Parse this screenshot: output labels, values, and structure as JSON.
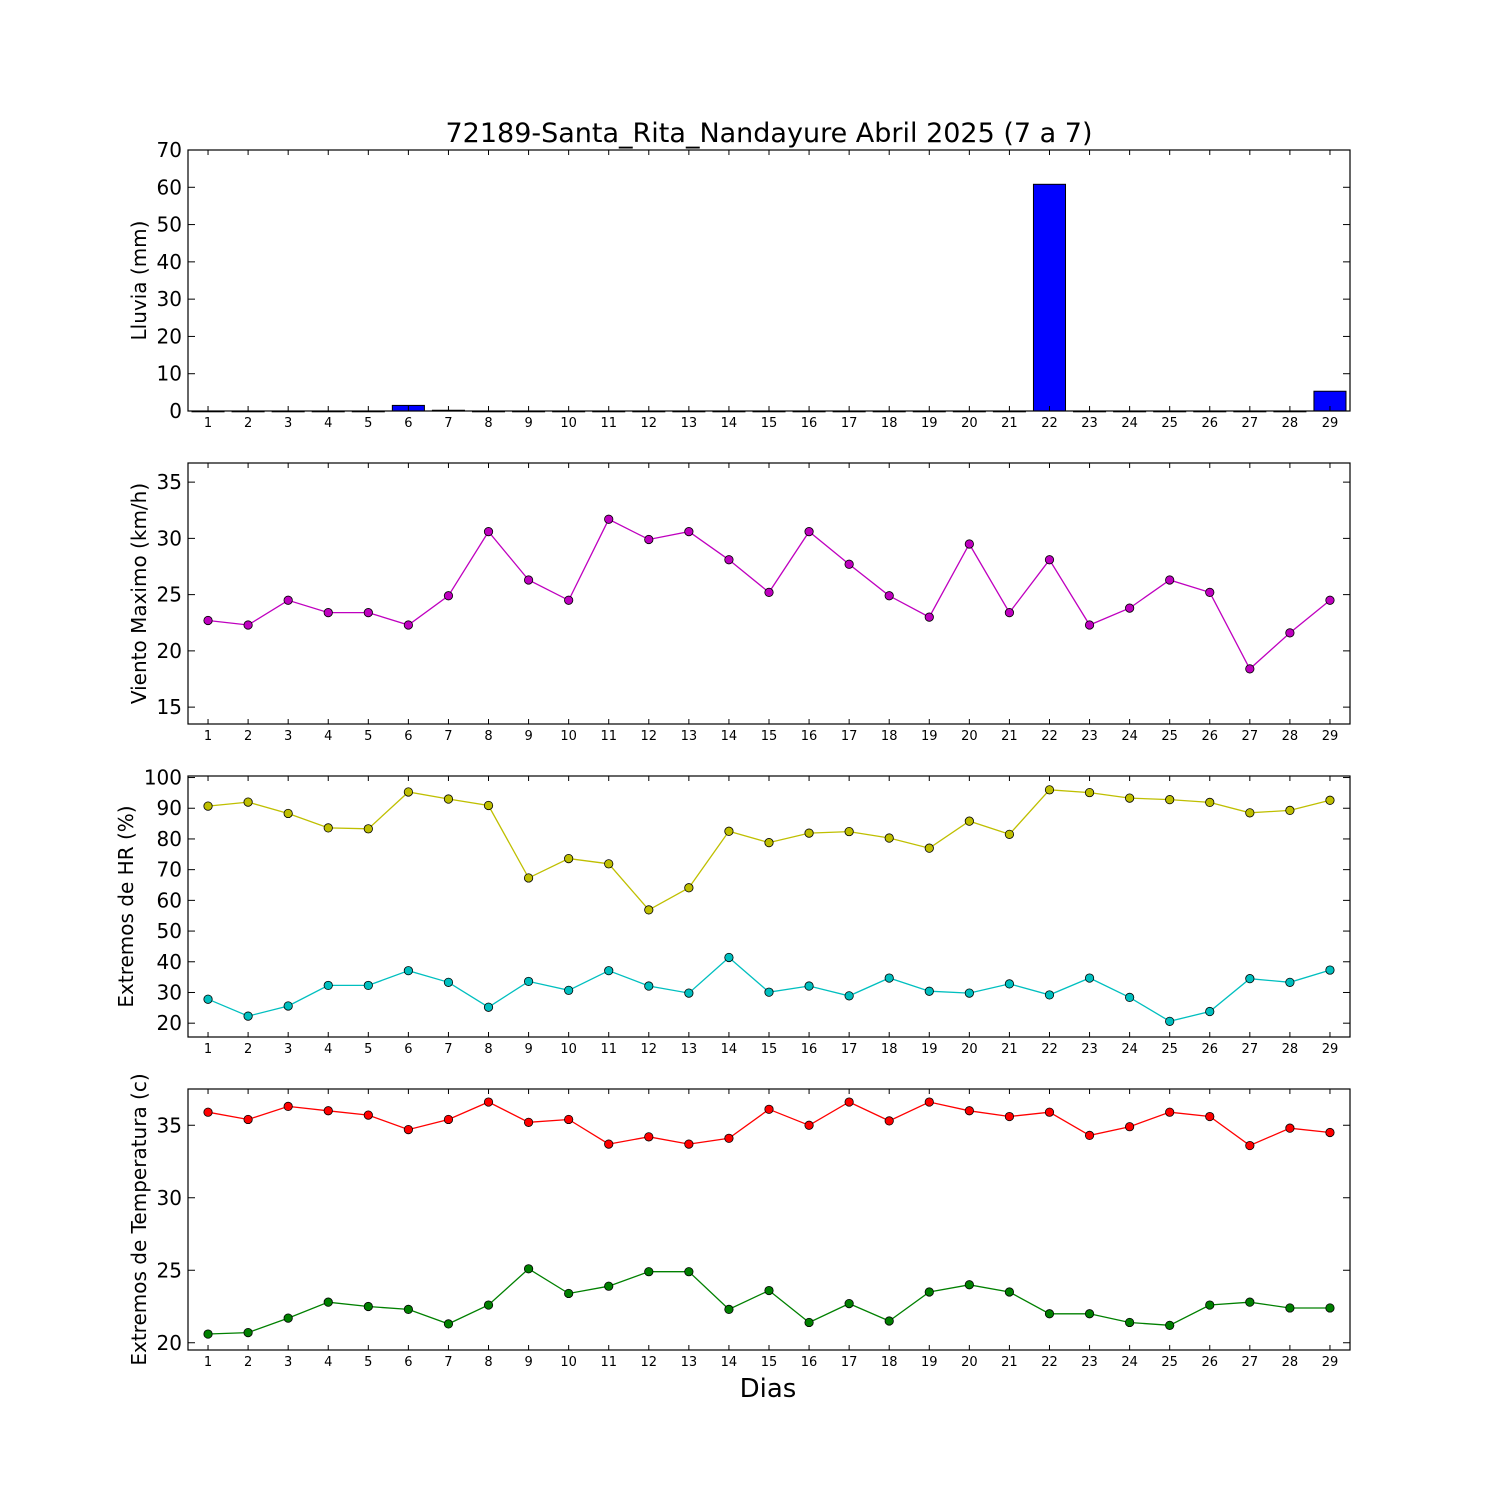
{
  "chart_data": [
    {
      "type": "bar",
      "title": "72189-Santa_Rita_Nandayure Abril 2025  (7 a 7)",
      "ylabel": "Lluvia (mm)",
      "xlabel": "",
      "ylim": [
        0,
        70
      ],
      "yticks": [
        0,
        10,
        20,
        30,
        40,
        50,
        60,
        70
      ],
      "x": [
        1,
        2,
        3,
        4,
        5,
        6,
        7,
        8,
        9,
        10,
        11,
        12,
        13,
        14,
        15,
        16,
        17,
        18,
        19,
        20,
        21,
        22,
        23,
        24,
        25,
        26,
        27,
        28,
        29
      ],
      "series": [
        {
          "color": "#0000ff",
          "values": [
            0,
            0,
            0,
            0,
            0,
            1.5,
            0.2,
            0,
            0,
            0,
            0,
            0,
            0,
            0,
            0,
            0,
            0,
            0,
            0,
            0,
            0,
            60.8,
            0,
            0,
            0,
            0,
            0,
            0,
            5.3
          ]
        }
      ],
      "grid": false
    },
    {
      "type": "line",
      "title": "",
      "ylabel": "Viento Maximo (km/h)",
      "xlabel": "",
      "ylim": [
        13.5,
        36.7
      ],
      "yticks": [
        15,
        20,
        25,
        30,
        35
      ],
      "x": [
        1,
        2,
        3,
        4,
        5,
        6,
        7,
        8,
        9,
        10,
        11,
        12,
        13,
        14,
        15,
        16,
        17,
        18,
        19,
        20,
        21,
        22,
        23,
        24,
        25,
        26,
        27,
        28,
        29
      ],
      "series": [
        {
          "color": "#bf00bf",
          "values": [
            22.7,
            22.3,
            24.5,
            23.4,
            23.4,
            22.3,
            24.9,
            30.6,
            26.3,
            24.5,
            31.7,
            29.9,
            30.6,
            28.1,
            25.2,
            30.6,
            27.7,
            24.9,
            23.0,
            29.5,
            23.4,
            28.1,
            22.3,
            23.8,
            26.3,
            25.2,
            18.4,
            21.6,
            24.5
          ]
        }
      ],
      "grid": false
    },
    {
      "type": "line",
      "title": "",
      "ylabel": "Extremos de HR (%)",
      "xlabel": "",
      "ylim": [
        15.5,
        100.5
      ],
      "yticks": [
        20,
        30,
        40,
        50,
        60,
        70,
        80,
        90,
        100
      ],
      "x": [
        1,
        2,
        3,
        4,
        5,
        6,
        7,
        8,
        9,
        10,
        11,
        12,
        13,
        14,
        15,
        16,
        17,
        18,
        19,
        20,
        21,
        22,
        23,
        24,
        25,
        26,
        27,
        28,
        29
      ],
      "series": [
        {
          "color": "#bfbf00",
          "values": [
            90.7,
            92.0,
            88.3,
            83.6,
            83.3,
            95.3,
            93.0,
            90.9,
            67.3,
            73.6,
            71.9,
            56.9,
            64.1,
            82.5,
            78.8,
            81.9,
            82.4,
            80.3,
            77.0,
            85.8,
            81.5,
            96.0,
            95.1,
            93.3,
            92.8,
            91.9,
            88.5,
            89.3,
            92.6
          ]
        },
        {
          "color": "#00bfbf",
          "values": [
            27.8,
            22.3,
            25.6,
            32.3,
            32.3,
            37.1,
            33.3,
            25.2,
            33.6,
            30.7,
            37.1,
            32.1,
            29.8,
            41.4,
            30.1,
            32.1,
            28.9,
            34.7,
            30.4,
            29.8,
            32.8,
            29.2,
            34.7,
            28.4,
            20.6,
            23.8,
            34.5,
            33.3,
            37.3
          ]
        }
      ],
      "grid": false
    },
    {
      "type": "line",
      "title": "",
      "ylabel": "Extremos de Temperatura (c)",
      "xlabel": "Dias",
      "ylim": [
        19.5,
        37.5
      ],
      "yticks": [
        20,
        25,
        30,
        35
      ],
      "x": [
        1,
        2,
        3,
        4,
        5,
        6,
        7,
        8,
        9,
        10,
        11,
        12,
        13,
        14,
        15,
        16,
        17,
        18,
        19,
        20,
        21,
        22,
        23,
        24,
        25,
        26,
        27,
        28,
        29
      ],
      "series": [
        {
          "color": "#ff0000",
          "values": [
            35.9,
            35.4,
            36.3,
            36.0,
            35.7,
            34.7,
            35.4,
            36.6,
            35.2,
            35.4,
            33.7,
            34.2,
            33.7,
            34.1,
            36.1,
            35.0,
            36.6,
            35.3,
            36.6,
            36.0,
            35.6,
            35.9,
            34.3,
            34.9,
            35.9,
            35.6,
            33.6,
            34.8,
            34.5
          ]
        },
        {
          "color": "#008000",
          "values": [
            20.6,
            20.7,
            21.7,
            22.8,
            22.5,
            22.3,
            21.3,
            22.6,
            25.1,
            23.4,
            23.9,
            24.9,
            24.9,
            22.3,
            23.6,
            21.4,
            22.7,
            21.5,
            23.5,
            24.0,
            23.5,
            22.0,
            22.0,
            21.4,
            21.2,
            22.6,
            22.8,
            22.4,
            22.4
          ]
        }
      ],
      "grid": false
    }
  ]
}
